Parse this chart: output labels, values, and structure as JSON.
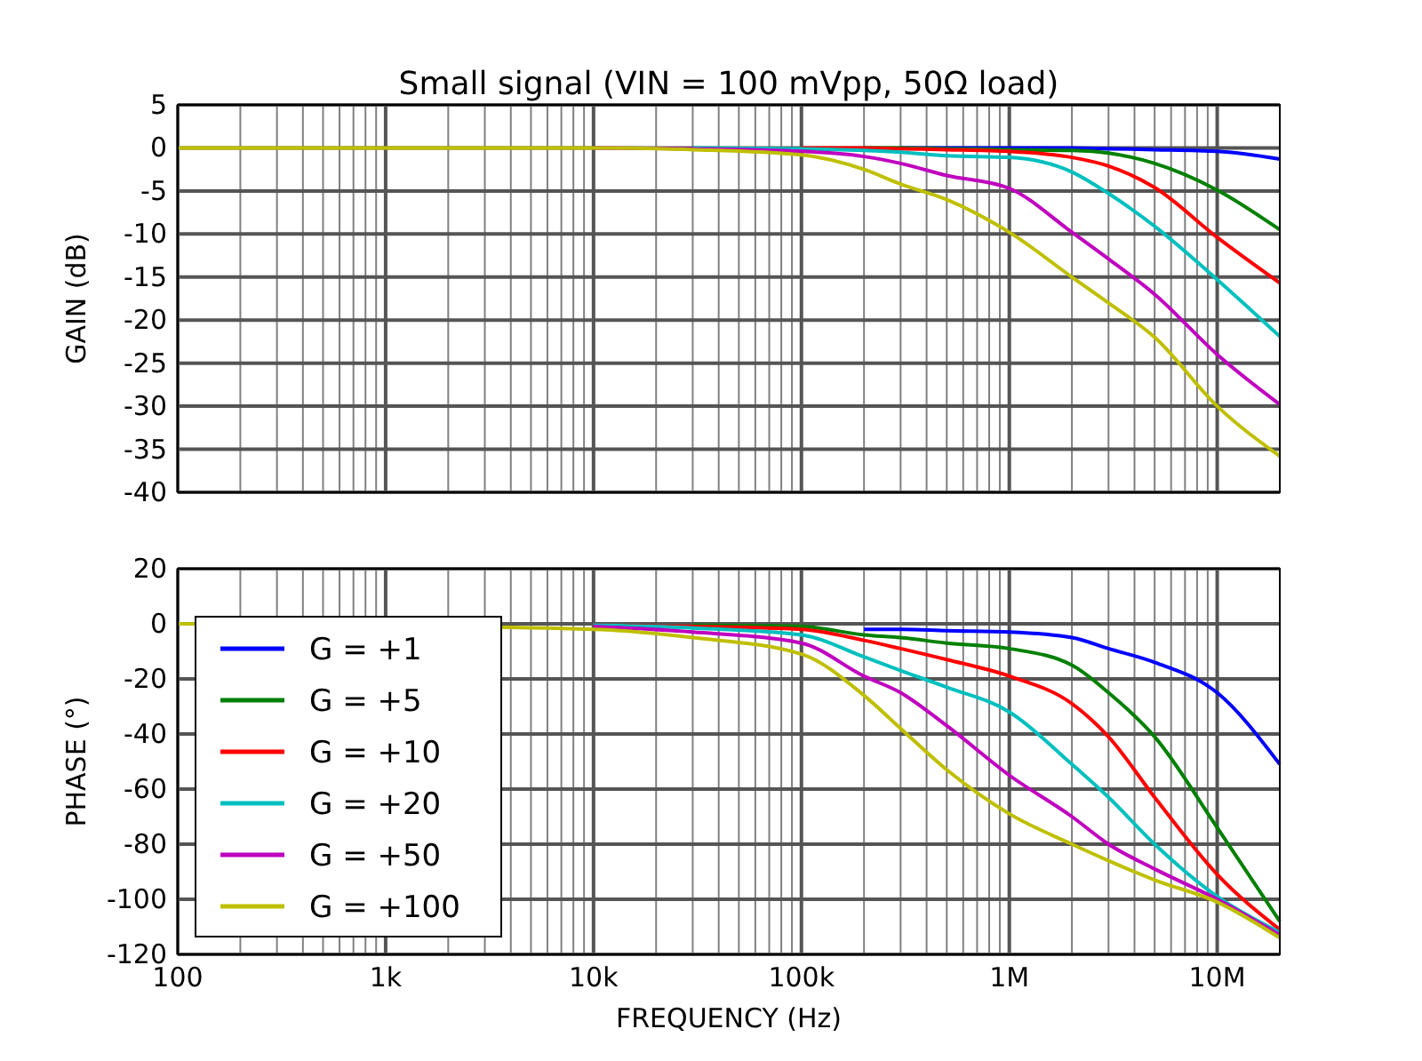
{
  "chart_data": [
    {
      "type": "line",
      "title": "Small signal (VIN = 100 mVpp, 50Ω load)",
      "ylabel": "GAIN (dB)",
      "log": "x",
      "grid": true,
      "tick_labels": "y",
      "xlim": [
        100,
        20000000
      ],
      "ylim": [
        -40,
        5
      ],
      "xticks": [
        {
          "value": 100,
          "label": null
        },
        {
          "value": 200,
          "label": null
        },
        {
          "value": 300,
          "label": null
        },
        {
          "value": 400,
          "label": null
        },
        {
          "value": 500,
          "label": null
        },
        {
          "value": 600,
          "label": null
        },
        {
          "value": 700,
          "label": null
        },
        {
          "value": 800,
          "label": null
        },
        {
          "value": 900,
          "label": null
        },
        {
          "value": 1000,
          "label": null
        },
        {
          "value": 2000,
          "label": null
        },
        {
          "value": 3000,
          "label": null
        },
        {
          "value": 4000,
          "label": null
        },
        {
          "value": 5000,
          "label": null
        },
        {
          "value": 6000,
          "label": null
        },
        {
          "value": 7000,
          "label": null
        },
        {
          "value": 8000,
          "label": null
        },
        {
          "value": 9000,
          "label": null
        },
        {
          "value": 10000,
          "label": null
        },
        {
          "value": 20000,
          "label": null
        },
        {
          "value": 30000,
          "label": null
        },
        {
          "value": 40000,
          "label": null
        },
        {
          "value": 50000,
          "label": null
        },
        {
          "value": 60000,
          "label": null
        },
        {
          "value": 70000,
          "label": null
        },
        {
          "value": 80000,
          "label": null
        },
        {
          "value": 90000,
          "label": null
        },
        {
          "value": 100000,
          "label": null
        },
        {
          "value": 200000,
          "label": null
        },
        {
          "value": 300000,
          "label": null
        },
        {
          "value": 400000,
          "label": null
        },
        {
          "value": 500000,
          "label": null
        },
        {
          "value": 600000,
          "label": null
        },
        {
          "value": 700000,
          "label": null
        },
        {
          "value": 800000,
          "label": null
        },
        {
          "value": 900000,
          "label": null
        },
        {
          "value": 1000000,
          "label": null
        },
        {
          "value": 2000000,
          "label": null
        },
        {
          "value": 3000000,
          "label": null
        },
        {
          "value": 4000000,
          "label": null
        },
        {
          "value": 5000000,
          "label": null
        },
        {
          "value": 6000000,
          "label": null
        },
        {
          "value": 7000000,
          "label": null
        },
        {
          "value": 8000000,
          "label": null
        },
        {
          "value": 9000000,
          "label": null
        },
        {
          "value": 10000000,
          "label": null
        }
      ],
      "yticks": [
        -40,
        -35,
        -30,
        -25,
        -20,
        -15,
        -10,
        -5,
        0,
        5
      ],
      "x": [
        100,
        1000,
        10000,
        30000,
        100000,
        200000,
        300000,
        500000,
        1000000,
        2000000,
        3000000,
        5000000,
        10000000,
        20000000
      ],
      "series": [
        {
          "color": "#0000ff",
          "values": [
            null,
            null,
            null,
            null,
            null,
            null,
            0,
            0,
            0,
            0,
            -0.1,
            -0.2,
            -0.4,
            -1.3
          ]
        },
        {
          "color": "#008000",
          "values": [
            null,
            null,
            null,
            null,
            null,
            0,
            0,
            -0.1,
            -0.2,
            -0.3,
            -0.6,
            -1.8,
            -4.9,
            -9.5
          ]
        },
        {
          "color": "#ff0000",
          "values": [
            null,
            null,
            null,
            null,
            0,
            0,
            -0.1,
            -0.2,
            -0.4,
            -1.1,
            -2.1,
            -4.6,
            -10.4,
            -15.7
          ]
        },
        {
          "color": "#00bfbf",
          "values": [
            null,
            null,
            null,
            0,
            -0.1,
            -0.3,
            -0.5,
            -0.9,
            -1.1,
            -2.8,
            -5.3,
            -9.1,
            -15.3,
            -21.9
          ]
        },
        {
          "color": "#bf00bf",
          "values": [
            null,
            null,
            0,
            -0.1,
            -0.4,
            -1,
            -1.8,
            -3.2,
            -4.7,
            -9.8,
            -12.9,
            -17,
            -24,
            -29.8
          ]
        },
        {
          "color": "#bfbf00",
          "values": [
            0,
            0,
            0,
            -0.2,
            -0.8,
            -2.5,
            -4.2,
            -6,
            -9.8,
            -15,
            -18,
            -22,
            -30,
            -35.8
          ]
        }
      ]
    },
    {
      "type": "line",
      "xlabel": "FREQUENCY (Hz)",
      "ylabel": "PHASE (°)",
      "log": "x",
      "grid": true,
      "legend": "left",
      "xlim": [
        100,
        20000000
      ],
      "ylim": [
        -120,
        20
      ],
      "xticks": [
        {
          "value": 100,
          "label": "100"
        },
        {
          "value": 200,
          "label": null
        },
        {
          "value": 300,
          "label": null
        },
        {
          "value": 400,
          "label": null
        },
        {
          "value": 500,
          "label": null
        },
        {
          "value": 600,
          "label": null
        },
        {
          "value": 700,
          "label": null
        },
        {
          "value": 800,
          "label": null
        },
        {
          "value": 900,
          "label": null
        },
        {
          "value": 1000,
          "label": "1k"
        },
        {
          "value": 2000,
          "label": null
        },
        {
          "value": 3000,
          "label": null
        },
        {
          "value": 4000,
          "label": null
        },
        {
          "value": 5000,
          "label": null
        },
        {
          "value": 6000,
          "label": null
        },
        {
          "value": 7000,
          "label": null
        },
        {
          "value": 8000,
          "label": null
        },
        {
          "value": 9000,
          "label": null
        },
        {
          "value": 10000,
          "label": "10k"
        },
        {
          "value": 20000,
          "label": null
        },
        {
          "value": 30000,
          "label": null
        },
        {
          "value": 40000,
          "label": null
        },
        {
          "value": 50000,
          "label": null
        },
        {
          "value": 60000,
          "label": null
        },
        {
          "value": 70000,
          "label": null
        },
        {
          "value": 80000,
          "label": null
        },
        {
          "value": 90000,
          "label": null
        },
        {
          "value": 100000,
          "label": "100k"
        },
        {
          "value": 200000,
          "label": null
        },
        {
          "value": 300000,
          "label": null
        },
        {
          "value": 400000,
          "label": null
        },
        {
          "value": 500000,
          "label": null
        },
        {
          "value": 600000,
          "label": null
        },
        {
          "value": 700000,
          "label": null
        },
        {
          "value": 800000,
          "label": null
        },
        {
          "value": 900000,
          "label": null
        },
        {
          "value": 1000000,
          "label": "1M"
        },
        {
          "value": 2000000,
          "label": null
        },
        {
          "value": 3000000,
          "label": null
        },
        {
          "value": 4000000,
          "label": null
        },
        {
          "value": 5000000,
          "label": null
        },
        {
          "value": 6000000,
          "label": null
        },
        {
          "value": 7000000,
          "label": null
        },
        {
          "value": 8000000,
          "label": null
        },
        {
          "value": 9000000,
          "label": null
        },
        {
          "value": 10000000,
          "label": "10M"
        }
      ],
      "yticks": [
        -120,
        -100,
        -80,
        -60,
        -40,
        -20,
        0,
        20
      ],
      "x": [
        100,
        1000,
        10000,
        30000,
        100000,
        200000,
        300000,
        500000,
        1000000,
        2000000,
        3000000,
        5000000,
        10000000,
        20000000
      ],
      "series": [
        {
          "name": "G = +1",
          "color": "#0000ff",
          "values": [
            null,
            null,
            null,
            null,
            null,
            -2,
            -2,
            -2.5,
            -3,
            -5,
            -9,
            -14,
            -25,
            -51
          ]
        },
        {
          "name": "G = +5",
          "color": "#008000",
          "values": [
            null,
            null,
            null,
            -0.5,
            -1,
            -4,
            -5,
            -7,
            -9,
            -15,
            -25,
            -41,
            -74,
            -108
          ]
        },
        {
          "name": "G = +10",
          "color": "#ff0000",
          "values": [
            null,
            null,
            -0.5,
            -1,
            -2,
            -6,
            -9,
            -13,
            -19,
            -29,
            -41,
            -63,
            -91,
            -111
          ]
        },
        {
          "name": "G = +20",
          "color": "#00bfbf",
          "values": [
            null,
            null,
            -0.5,
            -1.5,
            -4,
            -12,
            -17,
            -23,
            -32,
            -51,
            -63,
            -80,
            -99,
            -112
          ]
        },
        {
          "name": "G = +50",
          "color": "#bf00bf",
          "values": [
            null,
            null,
            -1,
            -3,
            -7,
            -19,
            -25,
            -37,
            -55,
            -70,
            -80,
            -89,
            -100,
            -113
          ]
        },
        {
          "name": "G = +100",
          "color": "#bfbf00",
          "values": [
            0,
            null,
            -2,
            -5,
            -11,
            -26,
            -38,
            -53,
            -69,
            -80,
            -86,
            -93,
            -101,
            -114
          ]
        }
      ]
    }
  ]
}
